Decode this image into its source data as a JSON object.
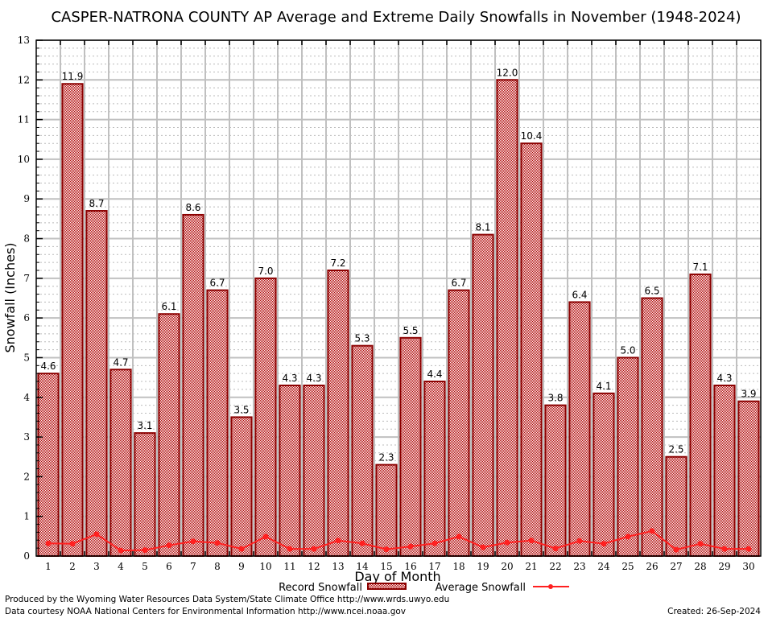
{
  "chart_data": {
    "type": "bar",
    "title": "CASPER-NATRONA COUNTY AP Average and Extreme Daily Snowfalls in November (1948-2024)",
    "xlabel": "Day of Month",
    "ylabel": "Snowfall (Inches)",
    "ylim": [
      0,
      13
    ],
    "yticks": [
      0,
      1,
      2,
      3,
      4,
      5,
      6,
      7,
      8,
      9,
      10,
      11,
      12,
      13
    ],
    "grid": true,
    "legend_placement": "bottom",
    "categories": [
      "1",
      "2",
      "3",
      "4",
      "5",
      "6",
      "7",
      "8",
      "9",
      "10",
      "11",
      "12",
      "13",
      "14",
      "15",
      "16",
      "17",
      "18",
      "19",
      "20",
      "21",
      "22",
      "23",
      "24",
      "25",
      "26",
      "27",
      "28",
      "29",
      "30"
    ],
    "series": [
      {
        "name": "Record Snowfall",
        "kind": "bar",
        "color": "#b00000",
        "values": [
          4.6,
          11.9,
          8.7,
          4.7,
          3.1,
          6.1,
          8.6,
          6.7,
          3.5,
          7.0,
          4.3,
          4.3,
          7.2,
          5.3,
          2.3,
          5.5,
          4.4,
          6.7,
          8.1,
          12.0,
          10.4,
          3.8,
          6.4,
          4.1,
          5.0,
          6.5,
          2.5,
          7.1,
          4.3,
          3.9
        ],
        "labels": [
          "4.6",
          "11.9",
          "8.7",
          "4.7",
          "3.1",
          "6.1",
          "8.6",
          "6.7",
          "3.5",
          "7.0",
          "4.3",
          "4.3",
          "7.2",
          "5.3",
          "2.3",
          "5.5",
          "4.4",
          "6.7",
          "8.1",
          "12.0",
          "10.4",
          "3.8",
          "6.4",
          "4.1",
          "5.0",
          "6.5",
          "2.5",
          "7.1",
          "4.3",
          "3.9"
        ]
      },
      {
        "name": "Average Snowfall",
        "kind": "line",
        "color": "#ff2020",
        "values": [
          0.32,
          0.31,
          0.55,
          0.14,
          0.15,
          0.27,
          0.37,
          0.33,
          0.18,
          0.49,
          0.18,
          0.18,
          0.39,
          0.32,
          0.17,
          0.24,
          0.32,
          0.49,
          0.22,
          0.34,
          0.39,
          0.19,
          0.38,
          0.31,
          0.49,
          0.63,
          0.16,
          0.31,
          0.18,
          0.18
        ]
      }
    ]
  },
  "footer": {
    "line1": "Produced by the Wyoming Water Resources Data System/State Climate Office http://www.wrds.uwyo.edu",
    "line2": "Data courtesy NOAA National Centers for Environmental Information http://www.ncei.noaa.gov",
    "created": "Created: 26-Sep-2024"
  }
}
